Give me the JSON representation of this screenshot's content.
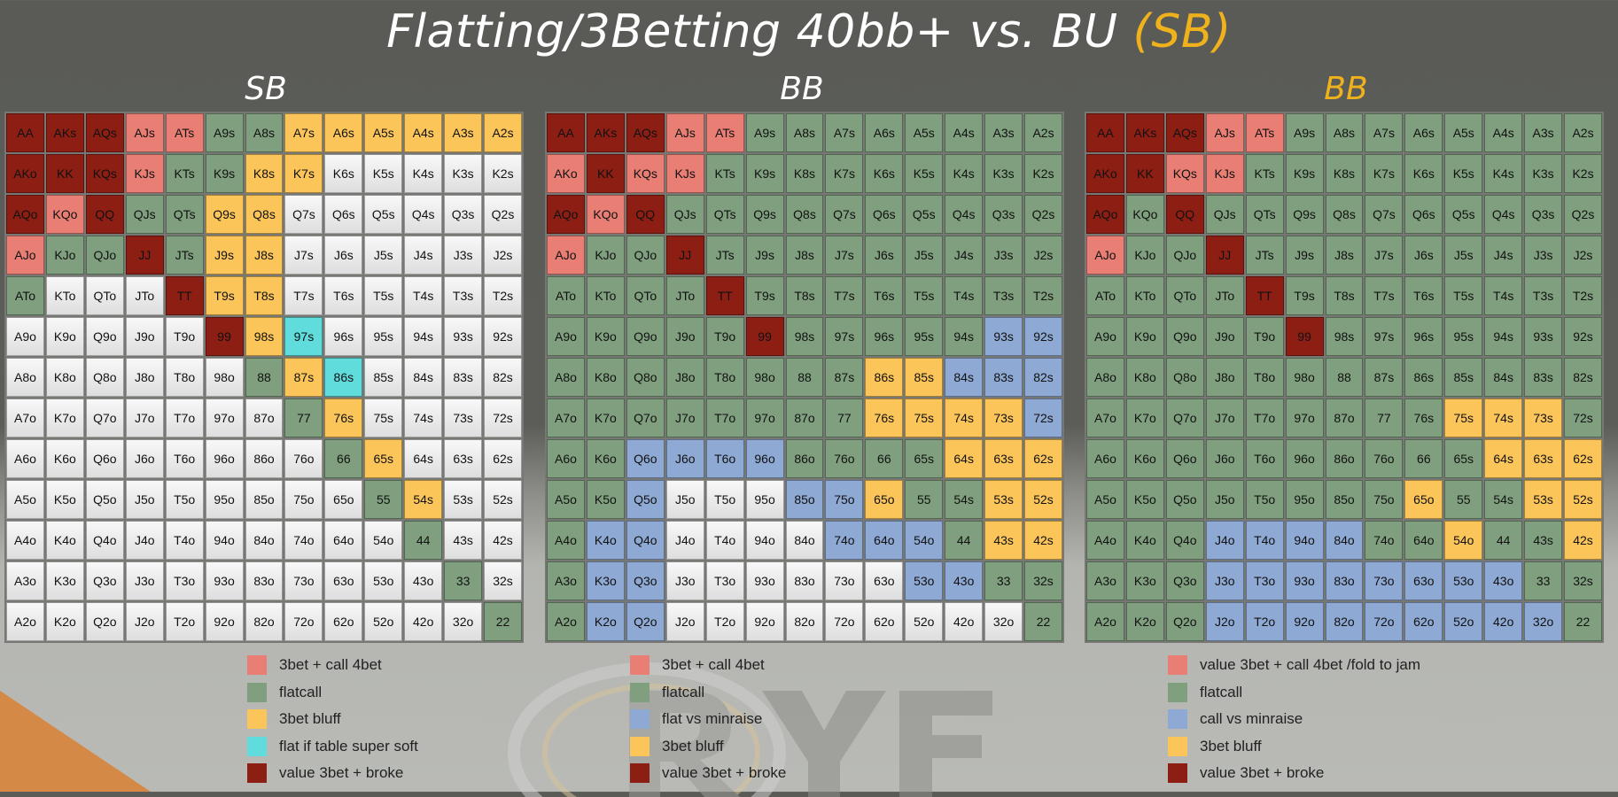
{
  "title": {
    "main": "Flatting/3Betting 40bb+ vs. BU",
    "accent": "(SB)"
  },
  "colors": {
    "r": "#e97f74",
    "g": "#7f9f7e",
    "y": "#fbc55a",
    "t": "#5fdcdb",
    "d": "#8c1e14",
    "b": "#8ea9d3",
    "w": "#ebebeb",
    "accent": "#f0b21c"
  },
  "ranks": [
    "A",
    "K",
    "Q",
    "J",
    "T",
    "9",
    "8",
    "7",
    "6",
    "5",
    "4",
    "3",
    "2"
  ],
  "chart_data": [
    {
      "type": "table",
      "title": "SB",
      "rows": [
        "dddrrggyyyyyy",
        "dddrggyywwwww",
        "drdggyywwwwww",
        "rggdgyywwwwww",
        "gwwwdyywwwwww",
        "wwwwwdytwwwww",
        "wwwwwwgytwwww",
        "wwwwwwwgywwww",
        "wwwwwwwwgywww",
        "wwwwwwwwwgyww",
        "wwwwwwwwwwgww",
        "wwwwwwwwwwwgw",
        "wwwwwwwwwwwwg"
      ],
      "legend": [
        {
          "color": "r",
          "label": "3bet + call 4bet"
        },
        {
          "color": "g",
          "label": "flatcall"
        },
        {
          "color": "y",
          "label": "3bet bluff"
        },
        {
          "color": "t",
          "label": "flat if table super soft"
        },
        {
          "color": "d",
          "label": "value 3bet + broke"
        }
      ]
    },
    {
      "type": "table",
      "title": "BB",
      "rows": [
        "dddrrgggggggg",
        "rdrrggggggggg",
        "drdgggggggggg",
        "rggdggggggggg",
        "ggggdgggggggg",
        "gggggdgggggbb",
        "ggggggggyybbb",
        "ggggggggyyyyb",
        "ggbbbbggggyyy",
        "ggbwwwbbyggyy",
        "gbbwwwwbbbgyy",
        "gbbwwwwwwbbgg",
        "gbbwwwwwwwwwg"
      ],
      "legend": [
        {
          "color": "r",
          "label": "3bet + call 4bet"
        },
        {
          "color": "g",
          "label": "flatcall"
        },
        {
          "color": "b",
          "label": "flat vs minraise"
        },
        {
          "color": "y",
          "label": "3bet bluff"
        },
        {
          "color": "d",
          "label": "value 3bet + broke"
        }
      ]
    },
    {
      "type": "table",
      "title": "BB",
      "title_accent": true,
      "rows": [
        "dddrrgggggggg",
        "ddrrggggggggg",
        "dgdgggggggggg",
        "rggdggggggggg",
        "ggggdgggggggg",
        "gggggdggggggg",
        "ggggggggggggg",
        "gggggggggyyyg",
        "ggggggggggyyy",
        "ggggggggyggyy",
        "gggbbbbggyggy",
        "gggbbbbbbbbgg",
        "gggbbbbbbbbbg"
      ],
      "legend": [
        {
          "color": "r",
          "label": "value 3bet + call 4bet /fold to jam"
        },
        {
          "color": "g",
          "label": "flatcall"
        },
        {
          "color": "b",
          "label": "call vs minraise"
        },
        {
          "color": "y",
          "label": "3bet bluff"
        },
        {
          "color": "d",
          "label": "value 3bet + broke"
        }
      ]
    }
  ]
}
